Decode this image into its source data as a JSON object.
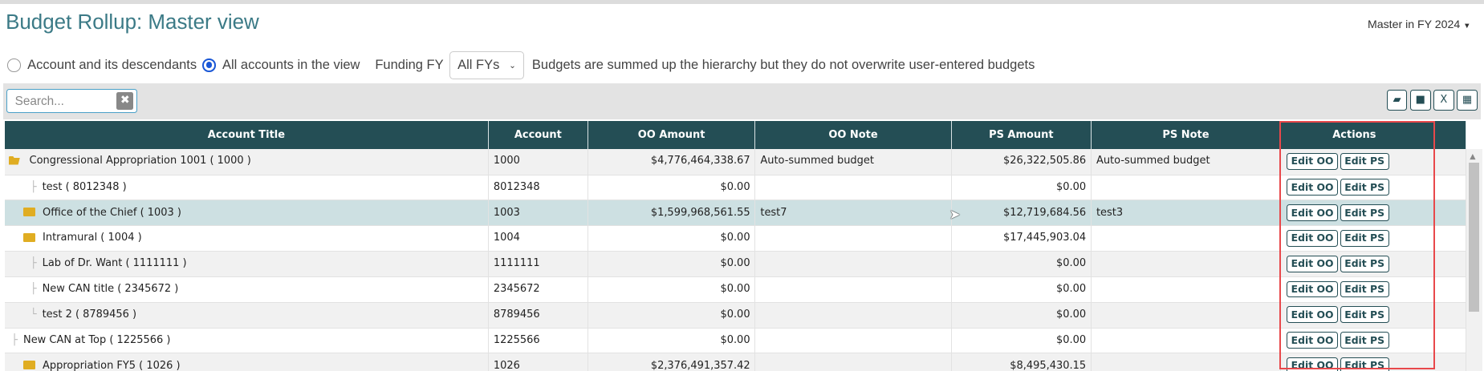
{
  "page": {
    "title": "Budget Rollup: Master view",
    "context_menu": "Master in FY 2024"
  },
  "options": {
    "radio_descendants": "Account and its descendants",
    "radio_all": "All accounts in the view",
    "radio_selected": "All accounts in the view",
    "funding_fy_label": "Funding FY",
    "funding_fy_value": "All FYs",
    "note": "Budgets are summed up the hierarchy but they do not overwrite user-entered budgets"
  },
  "toolbar": {
    "search_placeholder": "Search...",
    "clear_icon": "✖",
    "icons": [
      "folder-open-icon",
      "folder-icon",
      "excel-export-icon",
      "columns-grid-icon"
    ]
  },
  "table": {
    "headers": [
      "Account Title",
      "Account",
      "OO Amount",
      "OO Note",
      "PS Amount",
      "PS Note",
      "Actions"
    ],
    "edit_oo": "Edit OO",
    "edit_ps": "Edit PS",
    "rows": [
      {
        "title": "Congressional Appropriation 1001 ( 1000 )",
        "account": "1000",
        "oo": "$4,776,464,338.67",
        "oo_note": "Auto-summed budget",
        "ps": "$26,322,505.86",
        "ps_note": "Auto-summed budget",
        "icon": "folder-open-icon"
      },
      {
        "title": "test ( 8012348 )",
        "account": "8012348",
        "oo": "$0.00",
        "oo_note": "",
        "ps": "$0.00",
        "ps_note": "",
        "icon": "tree-leaf"
      },
      {
        "title": "Office of the Chief ( 1003 )",
        "account": "1003",
        "oo": "$1,599,968,561.55",
        "oo_note": "test7",
        "ps": "$12,719,684.56",
        "ps_note": "test3",
        "icon": "folder-icon",
        "highlighted": true
      },
      {
        "title": "Intramural ( 1004 )",
        "account": "1004",
        "oo": "$0.00",
        "oo_note": "",
        "ps": "$17,445,903.04",
        "ps_note": "",
        "icon": "folder-icon"
      },
      {
        "title": "Lab of Dr. Want ( 1111111 )",
        "account": "1111111",
        "oo": "$0.00",
        "oo_note": "",
        "ps": "$0.00",
        "ps_note": "",
        "icon": "tree-leaf"
      },
      {
        "title": "New CAN title ( 2345672 )",
        "account": "2345672",
        "oo": "$0.00",
        "oo_note": "",
        "ps": "$0.00",
        "ps_note": "",
        "icon": "tree-leaf"
      },
      {
        "title": "test 2 ( 8789456 )",
        "account": "8789456",
        "oo": "$0.00",
        "oo_note": "",
        "ps": "$0.00",
        "ps_note": "",
        "icon": "tree-leaf-last"
      },
      {
        "title": "New CAN at Top ( 1225566 )",
        "account": "1225566",
        "oo": "$0.00",
        "oo_note": "",
        "ps": "$0.00",
        "ps_note": "",
        "icon": "tree-leaf"
      },
      {
        "title": "Appropriation FY5 ( 1026 )",
        "account": "1026",
        "oo": "$2,376,491,357.42",
        "oo_note": "",
        "ps": "$8,495,430.15",
        "ps_note": "",
        "icon": "folder-icon"
      }
    ]
  },
  "colors": {
    "header_bg": "#244e55",
    "title": "#3b7a86",
    "highlight_row": "#cde0e2",
    "annotation_box": "#e8484b",
    "folder": "#e0ad22"
  }
}
